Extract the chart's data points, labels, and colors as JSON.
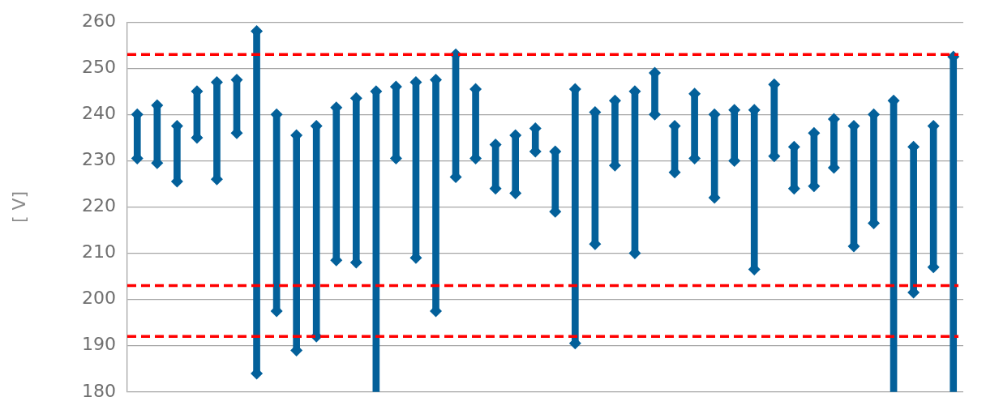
{
  "chart_data": {
    "type": "bar",
    "ylabel": "[ V]",
    "categories": [
      null,
      null,
      null,
      null,
      null,
      null,
      null,
      null,
      null,
      null,
      null,
      null,
      null,
      null,
      null,
      null,
      null,
      null,
      null,
      null,
      null,
      null,
      null,
      null,
      null,
      null,
      null,
      null,
      null,
      null,
      null,
      null,
      null,
      null,
      null,
      null,
      null,
      null,
      null,
      null,
      null,
      null
    ],
    "series": [
      {
        "color": "#03609a",
        "base": [
          230.5,
          229.5,
          225.5,
          235,
          226,
          236,
          184,
          197.5,
          189,
          192,
          208.5,
          208,
          180,
          230.5,
          209,
          197.5,
          226.5,
          230.5,
          224,
          223,
          232,
          219,
          190.5,
          212,
          229,
          210,
          240,
          227.5,
          230.5,
          222,
          230,
          206.5,
          231,
          224,
          224.5,
          228.5,
          211.5,
          216.5,
          180,
          201.5,
          207,
          180
        ],
        "values": [
          9.5,
          12.5,
          12,
          10,
          21,
          11.5,
          74,
          42.5,
          46.5,
          45.5,
          33,
          35.5,
          65,
          15.5,
          38,
          50,
          26.5,
          15,
          9.5,
          12.5,
          5,
          13,
          55,
          28.5,
          14,
          35,
          9,
          10,
          14,
          18,
          11,
          34.5,
          15.5,
          9,
          11.5,
          10.5,
          26,
          23.5,
          63,
          31.5,
          30.5,
          72.5
        ]
      },
      {
        "type": "scatter",
        "color": "#03609a",
        "values": [
          240,
          242,
          237.5,
          245,
          247,
          247.5,
          258,
          240,
          235.5,
          237.5,
          241.5,
          243.5,
          245,
          246,
          247,
          247.5,
          253,
          245.5,
          233.5,
          235.5,
          237,
          232,
          245.5,
          240.5,
          243,
          245,
          249,
          237.5,
          244.5,
          240,
          241,
          241,
          246.5,
          233,
          236,
          239,
          237.5,
          240,
          243,
          233,
          237.5,
          252.5
        ]
      },
      {
        "type": "scatter",
        "color": "#03609a",
        "values": [
          230.5,
          229.5,
          225.5,
          235,
          226,
          236,
          184,
          197.5,
          189,
          192,
          208.5,
          208,
          null,
          230.5,
          209,
          197.5,
          226.5,
          230.5,
          224,
          223,
          232,
          219,
          190.5,
          212,
          229,
          210,
          240,
          227.5,
          230.5,
          222,
          230,
          206.5,
          231,
          224,
          224.5,
          228.5,
          211.5,
          216.5,
          null,
          201.5,
          207,
          null
        ]
      }
    ],
    "marker": "diamond",
    "ylim": [
      180,
      260
    ],
    "yticks": [
      180,
      190,
      200,
      210,
      220,
      230,
      240,
      250,
      260
    ],
    "grid": "y",
    "tick_labels": "y",
    "legend": false,
    "ref_lines": [
      {
        "axis": "y",
        "value": 253,
        "color": "#ff0000",
        "line_style": "dashed"
      },
      {
        "axis": "y",
        "value": 203,
        "color": "#ff0000",
        "line_style": "dashed"
      },
      {
        "axis": "y",
        "value": 192,
        "color": "#ff0000",
        "line_style": "dashed"
      }
    ]
  }
}
